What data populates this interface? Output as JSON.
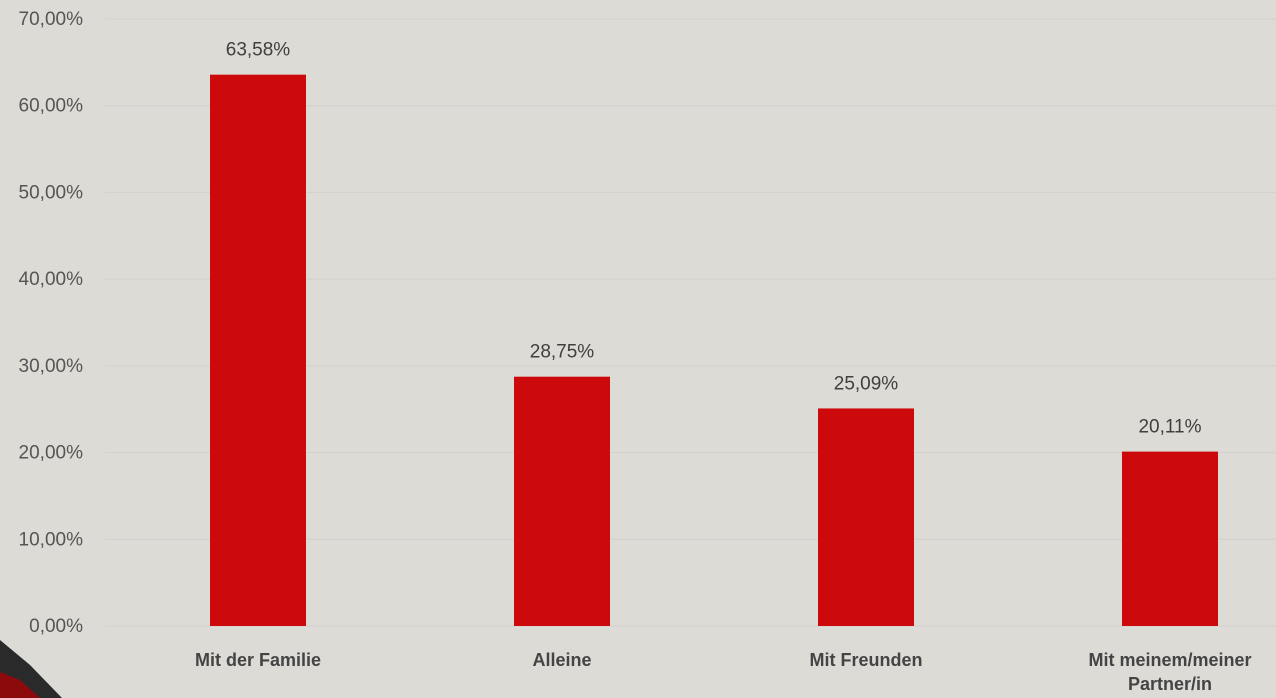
{
  "chart_data": {
    "type": "bar",
    "categories": [
      "Mit der Familie",
      "Alleine",
      "Mit Freunden",
      "Mit meinem/meiner Partner/in"
    ],
    "values": [
      63.58,
      28.75,
      25.09,
      20.11
    ],
    "data_labels": [
      "63,58%",
      "28,75%",
      "25,09%",
      "20,11%"
    ],
    "ylim": [
      0,
      70
    ],
    "y_ticks": [
      {
        "value": 0,
        "label": "0,00%"
      },
      {
        "value": 10,
        "label": "10,00%"
      },
      {
        "value": 20,
        "label": "20,00%"
      },
      {
        "value": 30,
        "label": "30,00%"
      },
      {
        "value": 40,
        "label": "40,00%"
      },
      {
        "value": 50,
        "label": "50,00%"
      },
      {
        "value": 60,
        "label": "60,00%"
      },
      {
        "value": 70,
        "label": "70,00%"
      }
    ],
    "grid": true,
    "legend": "none",
    "bar_color": "#cc0a0c"
  },
  "decoration": {
    "corner_dark": "#2a2a2a",
    "corner_red": "#8c0a0c"
  }
}
